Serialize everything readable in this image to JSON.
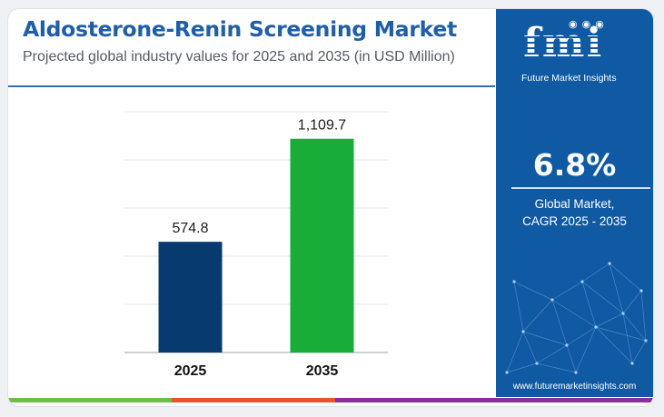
{
  "title": "Aldosterone-Renin Screening Market",
  "subtitle": "Projected global industry values for 2025 and 2035 (in USD Million)",
  "chart_data": {
    "type": "bar",
    "categories": [
      "2025",
      "2035"
    ],
    "values": [
      574.8,
      1109.7
    ],
    "value_labels": [
      "574.8",
      "1,109.7"
    ],
    "colors": [
      "#073b6f",
      "#17ad38"
    ],
    "ylim": [
      0,
      1250
    ],
    "grid": true,
    "legend": "none"
  },
  "sidebar": {
    "logo_text": "fmi",
    "logo_tagline": "Future Market Insights",
    "cagr_value": "6.8%",
    "cagr_label_line1": "Global Market,",
    "cagr_label_line2": "CAGR 2025 - 2035",
    "url": "www.futuremarketinsights.com"
  },
  "bottom_bar_colors": [
    "#6fbe44",
    "#e8542f",
    "#8a2f9a"
  ]
}
